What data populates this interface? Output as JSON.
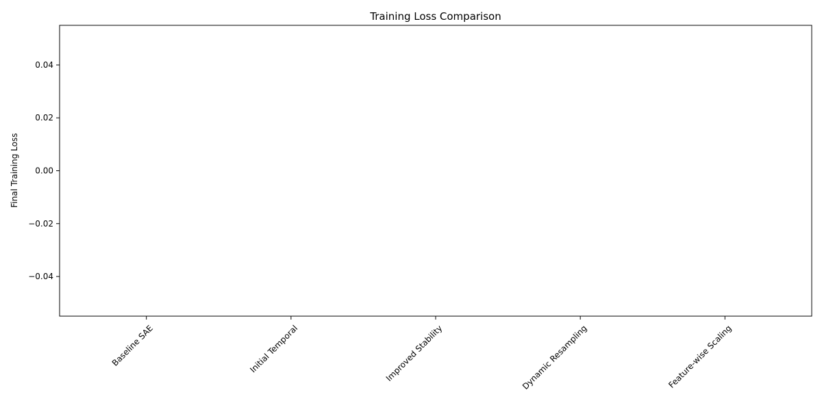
{
  "chart_data": {
    "type": "bar",
    "title": "Training Loss Comparison",
    "xlabel": "",
    "ylabel": "Final Training Loss",
    "categories": [
      "Baseline SAE",
      "Initial Temporal",
      "Improved Stability",
      "Dynamic Resampling",
      "Feature-wise Scaling"
    ],
    "values": [
      0,
      0,
      0,
      0,
      0
    ],
    "ylim": [
      -0.055,
      0.055
    ],
    "yticks": [
      -0.04,
      -0.02,
      0.0,
      0.02,
      0.04
    ],
    "ytick_labels": [
      "−0.04",
      "−0.02",
      "0.00",
      "0.02",
      "0.04"
    ],
    "x_tick_rotation": 45,
    "grid": false,
    "legend": "none"
  }
}
